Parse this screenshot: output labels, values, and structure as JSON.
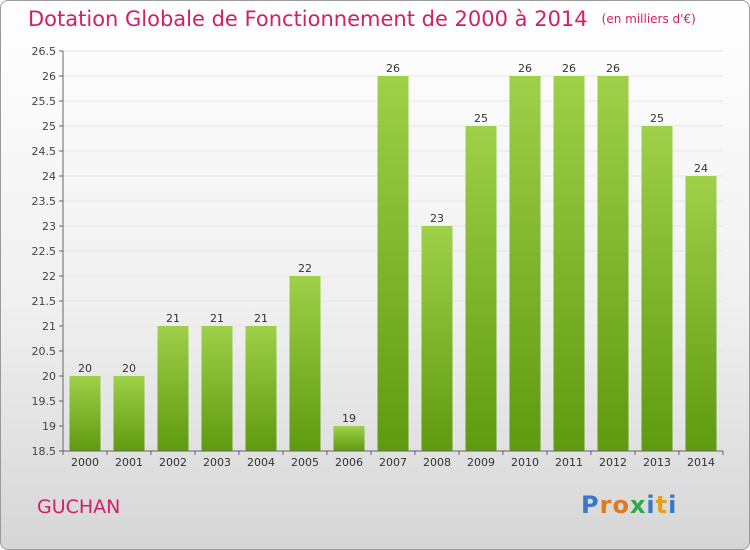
{
  "header": {
    "title": "Dotation Globale de Fonctionnement de 2000 à 2014",
    "unit": "(en milliers d'€)"
  },
  "footer": {
    "commune": "GUCHAN",
    "logo_letters": [
      "P",
      "r",
      "o",
      "x",
      "i",
      "t",
      "i"
    ]
  },
  "colors": {
    "bar_light": "#9fd04a",
    "bar_dark": "#5f9a10",
    "title": "#d0206a",
    "grid": "#e6e6e6"
  },
  "chart_data": {
    "type": "bar",
    "title": "Dotation Globale de Fonctionnement de 2000 à 2014",
    "subtitle": "(en milliers d'€)",
    "categories": [
      "2000",
      "2001",
      "2002",
      "2003",
      "2004",
      "2005",
      "2006",
      "2007",
      "2008",
      "2009",
      "2010",
      "2011",
      "2012",
      "2013",
      "2014"
    ],
    "values": [
      20,
      20,
      21,
      21,
      21,
      22,
      19,
      26,
      23,
      25,
      26,
      26,
      26,
      25,
      24
    ],
    "data_labels": [
      "20",
      "20",
      "21",
      "21",
      "21",
      "22",
      "19",
      "26",
      "23",
      "25",
      "26",
      "26",
      "26",
      "25",
      "24"
    ],
    "ylim": [
      18.5,
      26.5
    ],
    "yticks": [
      "18.5",
      "19",
      "19.5",
      "20",
      "20.5",
      "21",
      "21.5",
      "22",
      "22.5",
      "23",
      "23.5",
      "24",
      "24.5",
      "25",
      "25.5",
      "26",
      "26.5"
    ],
    "grid": true,
    "legend": "none"
  }
}
